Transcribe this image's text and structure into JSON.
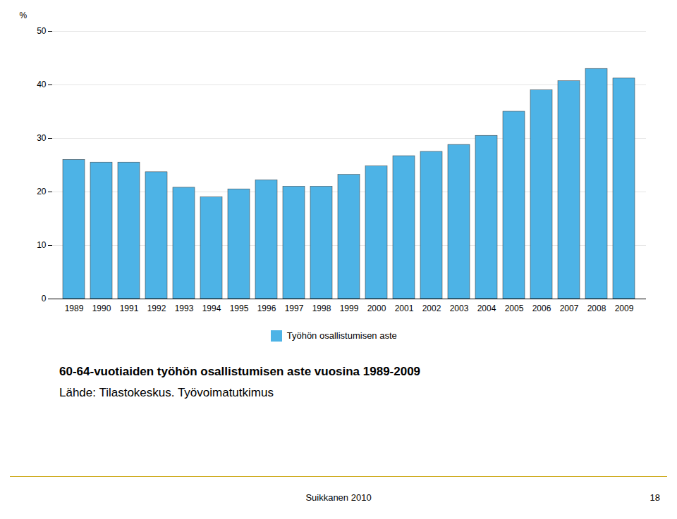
{
  "chart_data": {
    "type": "bar",
    "title": "60-64-vuotiaiden työhön osallistumisen aste vuosina 1989-2009",
    "caption": "Lähde: Tilastokeskus. Työvoimatutkimus",
    "annotations": [
      "Suikkanen 2010",
      "18"
    ],
    "ylabel": "%",
    "categories": [
      "1989",
      "1990",
      "1991",
      "1992",
      "1993",
      "1994",
      "1995",
      "1996",
      "1997",
      "1998",
      "1999",
      "2000",
      "2001",
      "2002",
      "2003",
      "2004",
      "2005",
      "2006",
      "2007",
      "2008",
      "2009"
    ],
    "series": [
      {
        "name": "Työhön osallistumisen aste",
        "color": "#4db3e6",
        "values": [
          26.0,
          25.5,
          25.5,
          23.7,
          20.8,
          19.0,
          20.5,
          22.2,
          21.0,
          21.0,
          23.2,
          24.8,
          26.7,
          27.5,
          28.8,
          30.5,
          35.0,
          39.0,
          40.7,
          43.0,
          41.2
        ]
      }
    ],
    "ylim": [
      0,
      50
    ],
    "yticks": [
      0,
      10,
      20,
      30,
      40,
      50
    ],
    "grid": true,
    "legend": "bottom"
  }
}
